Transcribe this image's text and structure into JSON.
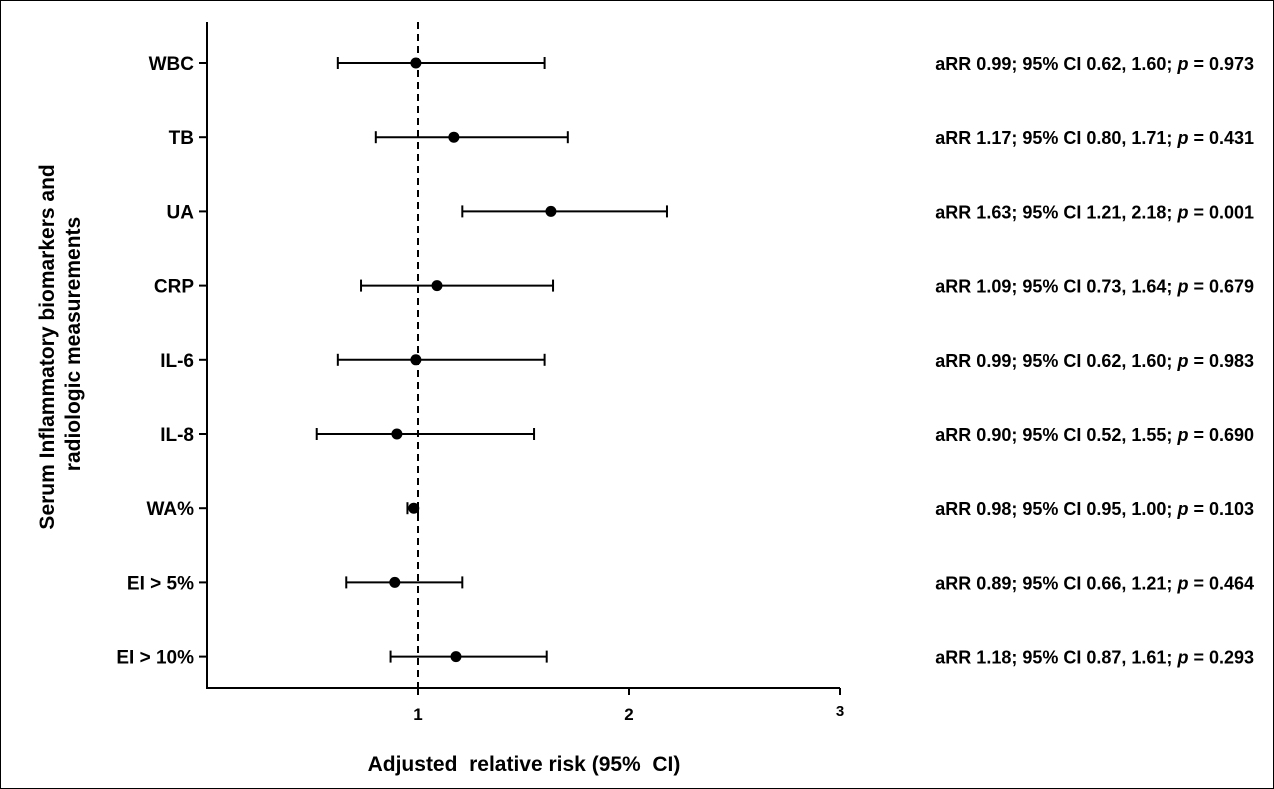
{
  "chart_data": {
    "type": "forest",
    "xlabel": "Adjusted  relative risk (95%  CI)",
    "ylabel": [
      "Serum Inflammatory biomarkers and",
      "radiologic measurements"
    ],
    "xlim": [
      0,
      3
    ],
    "xticks": [
      1,
      2,
      3
    ],
    "reference_line": 1,
    "grid": false,
    "rows": [
      {
        "label": "WBC",
        "estimate": 0.99,
        "ci_low": 0.62,
        "ci_high": 1.6,
        "p": "0.973",
        "annotation": "aRR 0.99; 95% CI 0.62, 1.60; ",
        "p_label": "p",
        "p_value_text": " = 0.973"
      },
      {
        "label": "TB",
        "estimate": 1.17,
        "ci_low": 0.8,
        "ci_high": 1.71,
        "p": "0.431",
        "annotation": "aRR 1.17; 95% CI 0.80, 1.71; ",
        "p_label": "p",
        "p_value_text": " = 0.431"
      },
      {
        "label": "UA",
        "estimate": 1.63,
        "ci_low": 1.21,
        "ci_high": 2.18,
        "p": "0.001",
        "annotation": "aRR 1.63; 95% CI 1.21, 2.18; ",
        "p_label": "p",
        "p_value_text": " = 0.001"
      },
      {
        "label": "CRP",
        "estimate": 1.09,
        "ci_low": 0.73,
        "ci_high": 1.64,
        "p": "0.679",
        "annotation": "aRR 1.09; 95% CI 0.73, 1.64; ",
        "p_label": "p",
        "p_value_text": " = 0.679"
      },
      {
        "label": "IL-6",
        "estimate": 0.99,
        "ci_low": 0.62,
        "ci_high": 1.6,
        "p": "0.983",
        "annotation": "aRR 0.99; 95% CI 0.62, 1.60; ",
        "p_label": "p",
        "p_value_text": " = 0.983"
      },
      {
        "label": "IL-8",
        "estimate": 0.9,
        "ci_low": 0.52,
        "ci_high": 1.55,
        "p": "0.690",
        "annotation": "aRR 0.90; 95% CI 0.52, 1.55; ",
        "p_label": "p",
        "p_value_text": " = 0.690"
      },
      {
        "label": "WA%",
        "estimate": 0.98,
        "ci_low": 0.95,
        "ci_high": 1.0,
        "p": "0.103",
        "annotation": "aRR 0.98; 95% CI 0.95, 1.00; ",
        "p_label": "p",
        "p_value_text": " = 0.103"
      },
      {
        "label": "EI > 5%",
        "estimate": 0.89,
        "ci_low": 0.66,
        "ci_high": 1.21,
        "p": "0.464",
        "annotation": "aRR 0.89; 95% CI 0.66, 1.21; ",
        "p_label": "p",
        "p_value_text": " = 0.464"
      },
      {
        "label": "EI > 10%",
        "estimate": 1.18,
        "ci_low": 0.87,
        "ci_high": 1.61,
        "p": "0.293",
        "annotation": "aRR 1.18; 95% CI 0.87, 1.61; ",
        "p_label": "p",
        "p_value_text": " = 0.293"
      }
    ]
  }
}
